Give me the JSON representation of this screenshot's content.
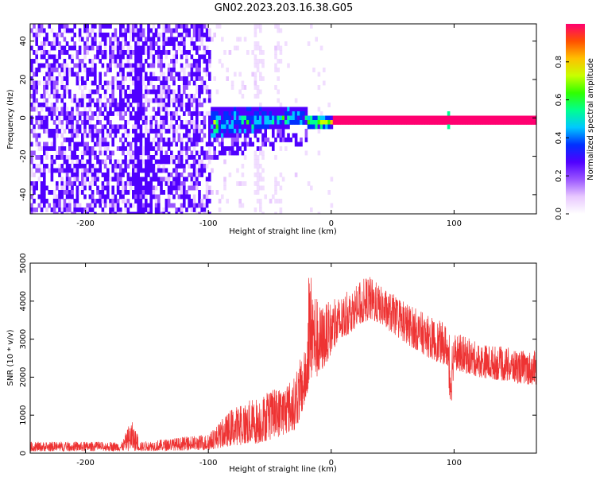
{
  "title": "GN02.2023.203.16.38.G05",
  "chart_data": [
    {
      "type": "heatmap",
      "xlabel": "Height of straight line (km)",
      "ylabel": "Frequency (Hz)",
      "xlim": [
        -245,
        167
      ],
      "ylim": [
        -50,
        49
      ],
      "xticks": [
        -200,
        -100,
        0,
        100
      ],
      "yticks": [
        -40,
        -20,
        0,
        20,
        40
      ],
      "colorbar": {
        "label": "Normalized spectral amplitude",
        "range": [
          0.0,
          1.0
        ],
        "ticks": [
          "0.0",
          "0.2",
          "0.4",
          "0.6",
          "0.8"
        ],
        "colors": [
          "#ffffff",
          "#e8c8ff",
          "#9a55ff",
          "#5000ff",
          "#0030ff",
          "#00c8ff",
          "#00ff90",
          "#30ff00",
          "#c8ff00",
          "#ffc000",
          "#ff5000",
          "#ff0070"
        ]
      },
      "features": {
        "noise_region_x": [
          -245,
          -100
        ],
        "transition_x": [
          -100,
          -20
        ],
        "carrier_line_x": [
          0,
          167
        ],
        "carrier_frequency": 0,
        "spike_x": 95
      }
    },
    {
      "type": "line",
      "xlabel": "Height of straight line (km)",
      "ylabel": "SNR (10 * v/v)",
      "xlim": [
        -245,
        167
      ],
      "ylim": [
        0,
        5000
      ],
      "xticks": [
        -200,
        -100,
        0,
        100
      ],
      "yticks": [
        0,
        1000,
        2000,
        3000,
        4000,
        5000
      ],
      "color": "#ee3333",
      "envelope": {
        "x": [
          -245,
          -170,
          -163,
          -155,
          -100,
          -80,
          -60,
          -45,
          -30,
          -25,
          -20,
          -18,
          -10,
          0,
          10,
          20,
          30,
          40,
          60,
          80,
          94,
          97,
          100,
          120,
          140,
          160,
          167
        ],
        "lo": [
          50,
          60,
          60,
          60,
          80,
          200,
          250,
          400,
          600,
          900,
          1400,
          1900,
          2000,
          2600,
          3000,
          3300,
          3500,
          3400,
          2900,
          2500,
          2300,
          1000,
          2200,
          2000,
          1900,
          1800,
          1800
        ],
        "hi": [
          300,
          300,
          900,
          300,
          500,
          1200,
          1500,
          1700,
          2000,
          2500,
          2800,
          5000,
          3900,
          4000,
          4200,
          4400,
          4700,
          4400,
          4000,
          3600,
          3400,
          3000,
          3200,
          2900,
          2800,
          2700,
          2700
        ]
      }
    }
  ]
}
